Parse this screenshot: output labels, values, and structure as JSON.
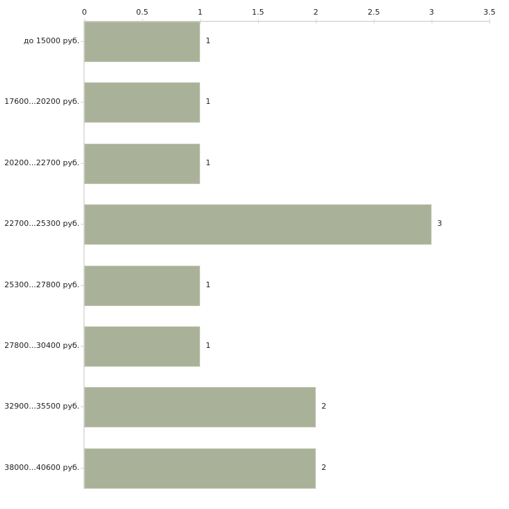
{
  "chart_data": {
    "type": "bar",
    "orientation": "horizontal",
    "title": "",
    "xlabel": "",
    "ylabel": "",
    "categories": [
      "до 15000 руб.",
      "17600...20200 руб.",
      "20200...22700 руб.",
      "22700...25300 руб.",
      "25300...27800 руб.",
      "27800...30400 руб.",
      "32900...35500 руб.",
      "38000...40600 руб."
    ],
    "values": [
      1,
      1,
      1,
      3,
      1,
      1,
      2,
      2
    ],
    "value_labels": [
      "1",
      "1",
      "1",
      "3",
      "1",
      "1",
      "2",
      "2"
    ],
    "xlim": [
      0,
      3.5
    ],
    "xticks": [
      0,
      0.5,
      1,
      1.5,
      2,
      2.5,
      3,
      3.5
    ],
    "xtick_labels": [
      "0",
      "0.5",
      "1",
      "1.5",
      "2",
      "2.5",
      "3",
      "3.5"
    ],
    "axis_position": "top",
    "grid": false,
    "legend": null,
    "colors": {
      "bar_fill": "#aab199",
      "bar_border": "#c6cbb5",
      "axis_line": "#c6c6c6",
      "tick_mark": "#d9ddc3",
      "category_tick": "#ccd1ba",
      "text": "#1f1f1f",
      "background": "#ffffff"
    }
  }
}
